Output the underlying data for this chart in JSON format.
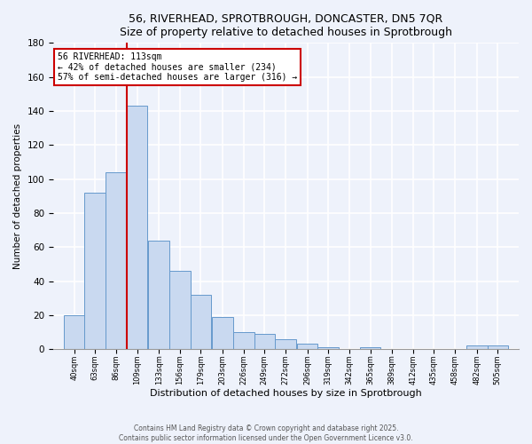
{
  "title": "56, RIVERHEAD, SPROTBROUGH, DONCASTER, DN5 7QR",
  "subtitle": "Size of property relative to detached houses in Sprotbrough",
  "xlabel": "Distribution of detached houses by size in Sprotbrough",
  "ylabel": "Number of detached properties",
  "bar_values": [
    20,
    92,
    104,
    143,
    64,
    46,
    32,
    19,
    10,
    9,
    6,
    3,
    1,
    0,
    1,
    0,
    0,
    0,
    0,
    2,
    2
  ],
  "bar_labels": [
    "40sqm",
    "63sqm",
    "86sqm",
    "109sqm",
    "133sqm",
    "156sqm",
    "179sqm",
    "203sqm",
    "226sqm",
    "249sqm",
    "272sqm",
    "296sqm",
    "319sqm",
    "342sqm",
    "365sqm",
    "389sqm",
    "412sqm",
    "435sqm",
    "458sqm",
    "482sqm",
    "505sqm"
  ],
  "bin_width": 23,
  "bin_centers": [
    40,
    63,
    86,
    109,
    133,
    156,
    179,
    203,
    226,
    249,
    272,
    296,
    319,
    342,
    365,
    389,
    412,
    435,
    458,
    482,
    505
  ],
  "bar_color": "#c9d9f0",
  "bar_edge_color": "#6699cc",
  "reference_line_x": 109,
  "annotation_title": "56 RIVERHEAD: 113sqm",
  "annotation_line1": "← 42% of detached houses are smaller (234)",
  "annotation_line2": "57% of semi-detached houses are larger (316) →",
  "annotation_box_color": "#ffffff",
  "annotation_box_edge": "#cc0000",
  "reference_line_color": "#cc0000",
  "ylim": [
    0,
    180
  ],
  "yticks": [
    0,
    20,
    40,
    60,
    80,
    100,
    120,
    140,
    160,
    180
  ],
  "footer_line1": "Contains HM Land Registry data © Crown copyright and database right 2025.",
  "footer_line2": "Contains public sector information licensed under the Open Government Licence v3.0.",
  "bg_color": "#eef2fb",
  "grid_color": "#ffffff"
}
